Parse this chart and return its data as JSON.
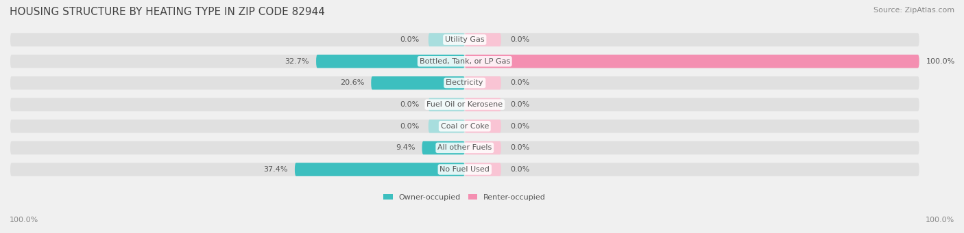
{
  "title": "HOUSING STRUCTURE BY HEATING TYPE IN ZIP CODE 82944",
  "source": "Source: ZipAtlas.com",
  "categories": [
    "Utility Gas",
    "Bottled, Tank, or LP Gas",
    "Electricity",
    "Fuel Oil or Kerosene",
    "Coal or Coke",
    "All other Fuels",
    "No Fuel Used"
  ],
  "owner_values": [
    0.0,
    32.7,
    20.6,
    0.0,
    0.0,
    9.4,
    37.4
  ],
  "renter_values": [
    0.0,
    100.0,
    0.0,
    0.0,
    0.0,
    0.0,
    0.0
  ],
  "owner_color": "#3dbfbf",
  "renter_color": "#f48fb1",
  "owner_color_light": "#a8dede",
  "renter_color_light": "#f9c4d4",
  "bg_color": "#f0f0f0",
  "bar_bg_color": "#e8e8e8",
  "title_fontsize": 11,
  "source_fontsize": 8,
  "label_fontsize": 8,
  "axis_label_fontsize": 8,
  "xlim": [
    -100,
    100
  ],
  "x_left_label": "100.0%",
  "x_right_label": "100.0%"
}
